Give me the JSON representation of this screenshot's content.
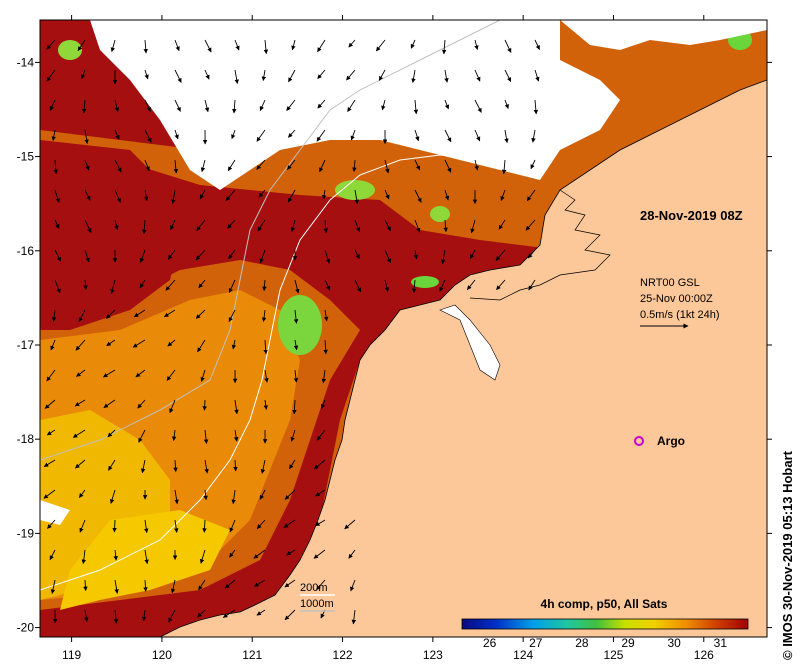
{
  "map": {
    "timestamp": "28-Nov-2019 08Z",
    "current_source": "NRT00 GSL",
    "current_date": "25-Nov 00:00Z",
    "current_scale": "0.5m/s (1kt 24h)",
    "argo_label": "Argo",
    "isobath_labels": [
      "200m",
      "1000m"
    ],
    "lon_ticks": [
      "119",
      "120",
      "121",
      "122",
      "123",
      "124",
      "125",
      "126"
    ],
    "lat_ticks": [
      "-14",
      "-15",
      "-16",
      "-17",
      "-18",
      "-19",
      "-20"
    ],
    "lon_range": [
      118.65,
      126.7
    ],
    "lat_range": [
      -20.1,
      -13.55
    ],
    "colorbar": {
      "title": "4h comp, p50, All Sats",
      "ticks": [
        "26",
        "27",
        "28",
        "29",
        "30",
        "31"
      ],
      "range": [
        25.4,
        31.6
      ]
    },
    "copyright": "© IMOS 30-Nov-2019 05:13 Hobart",
    "colors": {
      "land": "#fcc89a",
      "no_data": "#ffffff",
      "sst_hot": "#a50f0f",
      "sst_warm": "#d96a05",
      "sst_mid": "#f0b400",
      "sst_cool": "#6ad63c",
      "argo": "#cc00cc"
    }
  }
}
